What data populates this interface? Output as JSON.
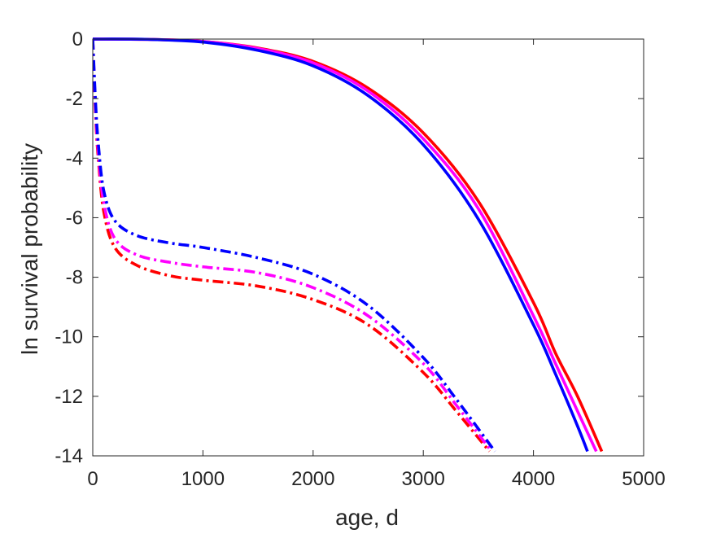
{
  "chart_data": {
    "type": "line",
    "xlabel": "age, d",
    "ylabel": "ln survival probability",
    "xlim": [
      0,
      5000
    ],
    "ylim": [
      -14,
      0
    ],
    "xticks": [
      0,
      1000,
      2000,
      3000,
      4000,
      5000
    ],
    "yticks": [
      0,
      -2,
      -4,
      -6,
      -8,
      -10,
      -12,
      -14
    ],
    "grid": false,
    "legend": "none",
    "series": [
      {
        "color": "#ff0000",
        "line_style": "solid",
        "x": [
          0,
          500,
          1000,
          1500,
          2000,
          2500,
          3000,
          3500,
          4000,
          4200,
          4400,
          4620
        ],
        "y": [
          0,
          -0.01,
          -0.08,
          -0.3,
          -0.75,
          -1.65,
          -3.15,
          -5.45,
          -8.85,
          -10.55,
          -12.0,
          -13.85
        ]
      },
      {
        "color": "#ff00ff",
        "line_style": "solid",
        "x": [
          0,
          500,
          1000,
          1500,
          2000,
          2500,
          3000,
          3500,
          4000,
          4200,
          4400,
          4570
        ],
        "y": [
          0,
          -0.01,
          -0.08,
          -0.32,
          -0.8,
          -1.75,
          -3.35,
          -5.7,
          -9.3,
          -10.9,
          -12.5,
          -13.85
        ]
      },
      {
        "color": "#0000ff",
        "line_style": "solid",
        "x": [
          0,
          500,
          1000,
          1500,
          2000,
          2500,
          3000,
          3500,
          4000,
          4200,
          4400,
          4490
        ],
        "y": [
          0,
          -0.01,
          -0.1,
          -0.38,
          -0.9,
          -1.9,
          -3.55,
          -6.05,
          -9.6,
          -11.25,
          -13.0,
          -13.85
        ]
      },
      {
        "color": "#ff0000",
        "line_style": "dashdot",
        "x": [
          0,
          25,
          50,
          100,
          200,
          400,
          700,
          1000,
          1500,
          2000,
          2500,
          3000,
          3300,
          3600
        ],
        "y": [
          0,
          -2.5,
          -4.0,
          -5.8,
          -7.0,
          -7.6,
          -7.95,
          -8.1,
          -8.3,
          -8.75,
          -9.6,
          -11.2,
          -12.5,
          -13.85
        ]
      },
      {
        "color": "#ff00ff",
        "line_style": "dashdot",
        "x": [
          0,
          25,
          50,
          100,
          200,
          400,
          700,
          1000,
          1500,
          2000,
          2500,
          3000,
          3300,
          3620
        ],
        "y": [
          0,
          -2.3,
          -3.8,
          -5.5,
          -6.7,
          -7.25,
          -7.5,
          -7.65,
          -7.85,
          -8.35,
          -9.3,
          -10.9,
          -12.3,
          -13.85
        ]
      },
      {
        "color": "#0000ff",
        "line_style": "dashdot",
        "x": [
          0,
          25,
          50,
          100,
          200,
          400,
          700,
          1000,
          1500,
          2000,
          2500,
          3000,
          3300,
          3650
        ],
        "y": [
          0,
          -2.1,
          -3.5,
          -5.1,
          -6.1,
          -6.6,
          -6.85,
          -7.0,
          -7.35,
          -7.9,
          -8.95,
          -10.7,
          -12.1,
          -13.85
        ]
      }
    ]
  }
}
